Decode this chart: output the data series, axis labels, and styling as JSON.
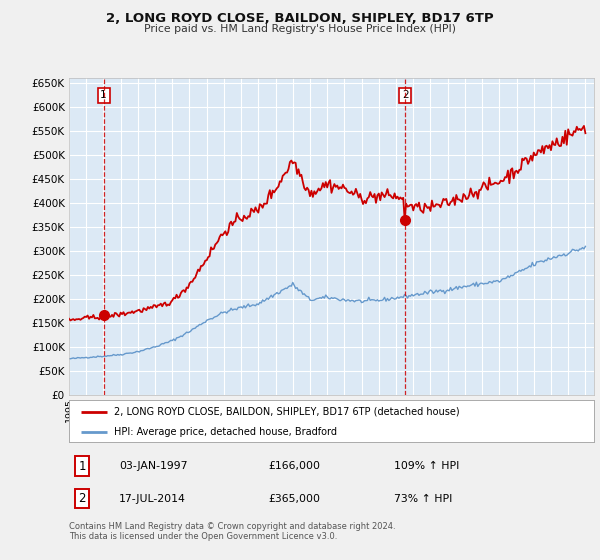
{
  "title": "2, LONG ROYD CLOSE, BAILDON, SHIPLEY, BD17 6TP",
  "subtitle": "Price paid vs. HM Land Registry's House Price Index (HPI)",
  "legend_line1": "2, LONG ROYD CLOSE, BAILDON, SHIPLEY, BD17 6TP (detached house)",
  "legend_line2": "HPI: Average price, detached house, Bradford",
  "transaction1_date": "03-JAN-1997",
  "transaction1_price": 166000,
  "transaction1_hpi": "109% ↑ HPI",
  "transaction2_date": "17-JUL-2014",
  "transaction2_price": 365000,
  "transaction2_hpi": "73% ↑ HPI",
  "footnote1": "Contains HM Land Registry data © Crown copyright and database right 2024.",
  "footnote2": "This data is licensed under the Open Government Licence v3.0.",
  "red_color": "#cc0000",
  "blue_color": "#6699cc",
  "plot_bg_color": "#dce9f5",
  "grid_color": "#ffffff",
  "fig_bg_color": "#f0f0f0",
  "transaction1_x": 1997.01,
  "transaction2_x": 2014.54,
  "hpi_anchors": {
    "1995.0": 75000,
    "1996.0": 78000,
    "1997.0": 80500,
    "1998.0": 84000,
    "1999.0": 90000,
    "2000.0": 100000,
    "2001.0": 113000,
    "2002.0": 132000,
    "2003.0": 155000,
    "2004.0": 172000,
    "2005.0": 182000,
    "2006.0": 190000,
    "2007.0": 210000,
    "2008.0": 230000,
    "2009.0": 198000,
    "2010.0": 203000,
    "2011.0": 198000,
    "2012.0": 195000,
    "2013.0": 197000,
    "2014.0": 202000,
    "2015.0": 208000,
    "2016.0": 214000,
    "2017.0": 219000,
    "2018.0": 226000,
    "2019.0": 232000,
    "2020.0": 237000,
    "2021.0": 253000,
    "2022.0": 272000,
    "2023.0": 285000,
    "2024.0": 296000,
    "2025.0": 308000
  },
  "red_anchors": {
    "1995.0": 155000,
    "1996.0": 160000,
    "1997.0": 163000,
    "1998.0": 168000,
    "1999.0": 175000,
    "2000.0": 182000,
    "2001.0": 195000,
    "2002.0": 230000,
    "2003.0": 285000,
    "2004.0": 340000,
    "2005.0": 370000,
    "2006.0": 385000,
    "2007.0": 430000,
    "2008.0": 490000,
    "2009.0": 420000,
    "2010.0": 440000,
    "2011.0": 430000,
    "2012.0": 410000,
    "2013.0": 415000,
    "2014.0": 415000,
    "2015.0": 390000,
    "2016.0": 390000,
    "2017.0": 400000,
    "2018.0": 415000,
    "2019.0": 430000,
    "2020.0": 445000,
    "2021.0": 470000,
    "2022.0": 500000,
    "2023.0": 520000,
    "2024.0": 540000,
    "2025.0": 560000
  },
  "ylim_min": 0,
  "ylim_max": 660000,
  "xlim_min": 1995.0,
  "xlim_max": 2025.5
}
